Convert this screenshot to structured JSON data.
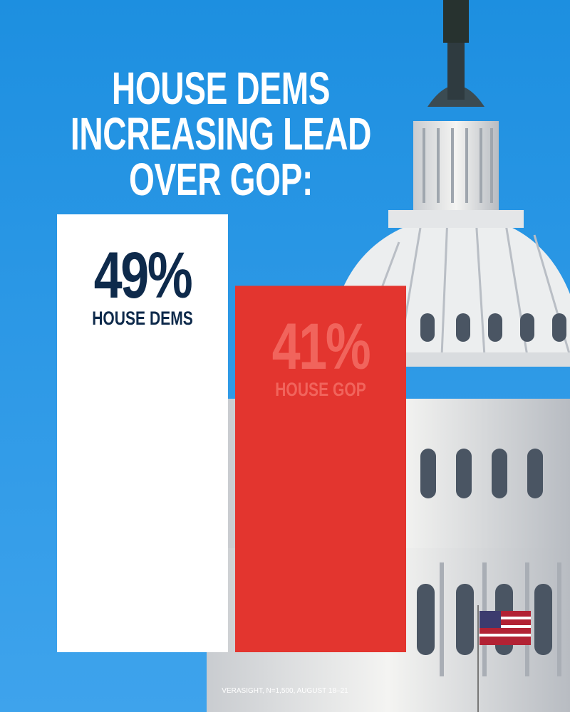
{
  "chart_data": {
    "type": "bar",
    "title": "HOUSE DEMS INCREASING LEAD OVER GOP:",
    "categories": [
      "HOUSE DEMS",
      "HOUSE GOP"
    ],
    "values": [
      49,
      41
    ],
    "value_labels": [
      "49%",
      "41%"
    ],
    "colors": [
      "#ffffff",
      "#e3352f"
    ],
    "label_colors": [
      "#0e2a4b",
      "#f1645c"
    ],
    "source": "VERASIGHT, N=1,500, AUGUST 18–21"
  }
}
